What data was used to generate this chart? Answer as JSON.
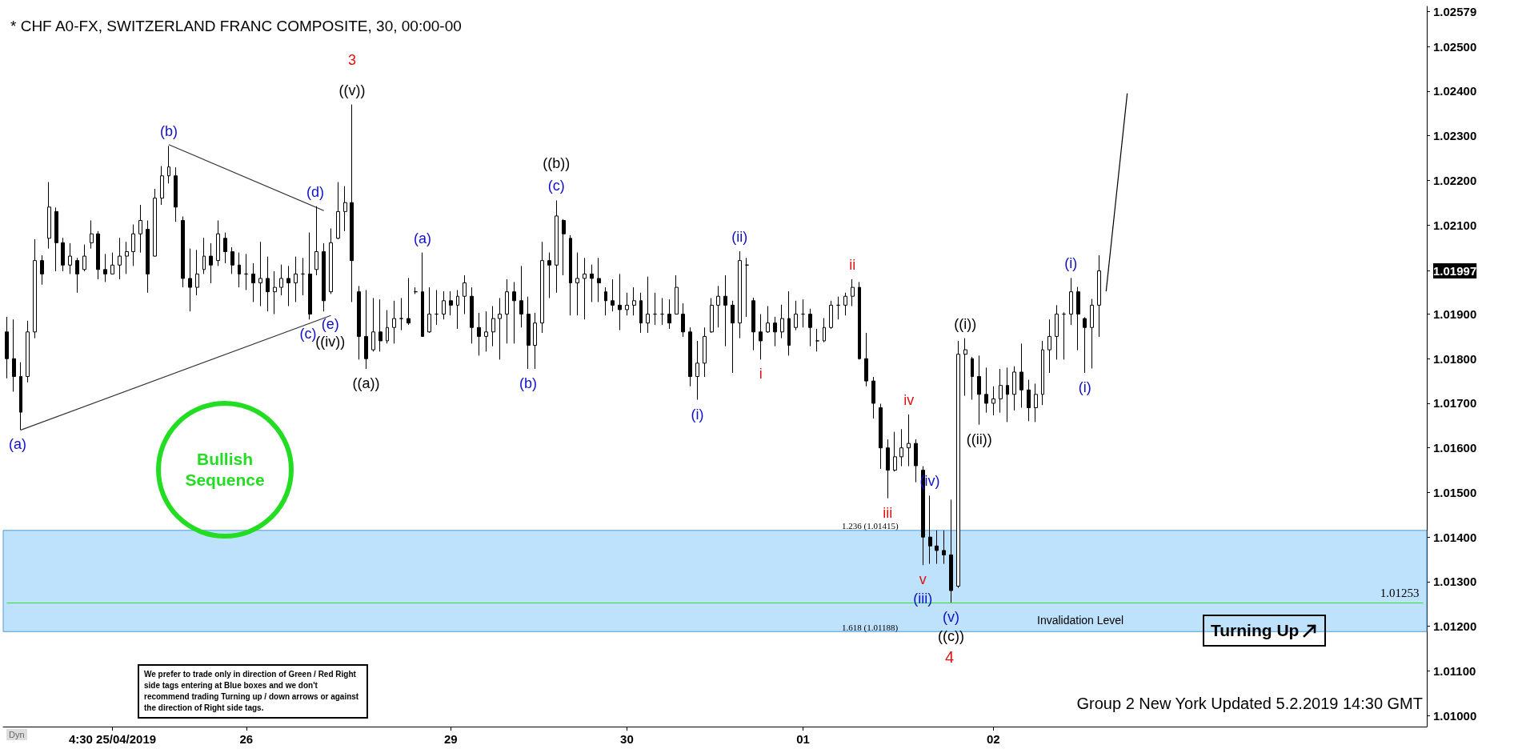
{
  "chart_data": {
    "type": "candlestick",
    "title": "* CHF A0-FX, SWITZERLAND FRANC COMPOSITE, 30, 00:00-00",
    "color": "#000000",
    "categories": [
      null,
      null,
      null,
      null,
      null,
      null,
      null,
      null,
      null,
      null,
      null,
      null,
      null,
      null,
      null,
      "4:30 25/04/2019",
      null,
      null,
      null,
      null,
      null,
      null,
      null,
      null,
      null,
      null,
      null,
      null,
      null,
      null,
      null,
      null,
      null,
      null,
      "26",
      null,
      null,
      null,
      null,
      null,
      null,
      null,
      null,
      null,
      null,
      null,
      null,
      null,
      null,
      null,
      null,
      null,
      null,
      null,
      null,
      null,
      null,
      null,
      null,
      null,
      null,
      null,
      null,
      "29",
      null,
      null,
      null,
      null,
      null,
      null,
      null,
      null,
      null,
      null,
      null,
      null,
      null,
      null,
      null,
      null,
      null,
      null,
      null,
      null,
      null,
      null,
      null,
      null,
      "30",
      null,
      null,
      null,
      null,
      null,
      null,
      null,
      null,
      null,
      null,
      null,
      null,
      null,
      null,
      null,
      null,
      null,
      null,
      null,
      null,
      null,
      null,
      null,
      null,
      "01",
      null,
      null,
      null,
      null,
      null,
      null,
      null,
      null,
      null,
      null,
      null,
      null,
      null,
      null,
      null,
      null,
      null,
      null,
      null,
      null,
      null,
      null,
      null,
      null,
      null,
      null,
      "02",
      null,
      null,
      null,
      null,
      null,
      null,
      null,
      null,
      null,
      null,
      null,
      null,
      null,
      null,
      null,
      null,
      null,
      null,
      null,
      null,
      null,
      null,
      null,
      null,
      null,
      null,
      null,
      null,
      null,
      null,
      null,
      null,
      null,
      null,
      null,
      null,
      null,
      null,
      null,
      null,
      null,
      null,
      null,
      null,
      null,
      null,
      null,
      null,
      null,
      null,
      null,
      null,
      null,
      null,
      null,
      null,
      null,
      null,
      null,
      null,
      null
    ],
    "ohlc": [
      [
        1.0186,
        1.01894,
        1.01756,
        1.018
      ],
      [
        1.018,
        1.01888,
        1.01726,
        1.0176
      ],
      [
        1.0176,
        1.01792,
        1.0164,
        1.0168
      ],
      [
        1.0176,
        1.01885,
        1.01747,
        1.0186
      ],
      [
        1.0186,
        1.02068,
        1.01846,
        1.0202
      ],
      [
        1.0202,
        1.02032,
        1.01966,
        1.0199
      ],
      [
        1.0207,
        1.02196,
        1.02047,
        1.0214
      ],
      [
        1.0213,
        1.02139,
        1.01996,
        1.0206
      ],
      [
        1.0206,
        1.02071,
        1.01996,
        1.0201
      ],
      [
        1.0201,
        1.02059,
        1.0199,
        1.0203
      ],
      [
        1.0202,
        1.02026,
        1.01948,
        1.0199
      ],
      [
        1.02,
        1.02056,
        1.01996,
        1.0203
      ],
      [
        1.0206,
        1.0211,
        1.02047,
        1.0208
      ],
      [
        1.0208,
        1.02086,
        1.01978,
        1.02
      ],
      [
        1.02,
        1.02035,
        1.01972,
        1.0199
      ],
      [
        1.0199,
        1.02038,
        1.0199,
        1.0201
      ],
      [
        1.0201,
        1.02071,
        1.01978,
        1.0203
      ],
      [
        1.0203,
        1.02062,
        1.0199,
        1.0204
      ],
      [
        1.0204,
        1.02101,
        1.02008,
        1.0208
      ],
      [
        1.0208,
        1.02145,
        1.02038,
        1.0211
      ],
      [
        1.0209,
        1.0211,
        1.01948,
        1.0199
      ],
      [
        1.0203,
        1.02181,
        1.02029,
        1.0216
      ],
      [
        1.0216,
        1.02232,
        1.02145,
        1.0221
      ],
      [
        1.0221,
        1.02277,
        1.02193,
        1.0223
      ],
      [
        1.0221,
        1.02229,
        1.02107,
        1.0214
      ],
      [
        1.0211,
        1.02119,
        1.0196,
        1.0198
      ],
      [
        1.0198,
        1.02047,
        1.01906,
        1.0196
      ],
      [
        1.0196,
        1.02044,
        1.01942,
        1.0199
      ],
      [
        1.02,
        1.02071,
        1.0199,
        1.0203
      ],
      [
        1.0203,
        1.02059,
        1.01969,
        1.0201
      ],
      [
        1.0202,
        1.0211,
        1.02008,
        1.0208
      ],
      [
        1.0207,
        1.02083,
        1.02014,
        1.0204
      ],
      [
        1.0204,
        1.0205,
        1.0199,
        1.0201
      ],
      [
        1.0201,
        1.02038,
        1.0196,
        1.0199
      ],
      [
        1.0199,
        1.02035,
        1.01954,
        1.0199
      ],
      [
        1.0199,
        1.02014,
        1.01927,
        1.0197
      ],
      [
        1.0197,
        1.02062,
        1.01918,
        1.0198
      ],
      [
        1.0198,
        1.02029,
        1.01906,
        1.0195
      ],
      [
        1.0195,
        1.01996,
        1.019,
        1.0196
      ],
      [
        1.0196,
        1.02011,
        1.01942,
        1.0198
      ],
      [
        1.0198,
        1.02008,
        1.01918,
        1.0197
      ],
      [
        1.0197,
        1.02029,
        1.01927,
        1.0199
      ],
      [
        1.0199,
        1.02026,
        1.01942,
        1.0199
      ],
      [
        1.0199,
        1.02083,
        1.01888,
        1.019
      ],
      [
        1.02,
        1.02142,
        1.01987,
        1.0204
      ],
      [
        1.0204,
        1.02059,
        1.01906,
        1.0193
      ],
      [
        1.0195,
        1.02092,
        1.01945,
        1.0206
      ],
      [
        1.0207,
        1.02196,
        1.02068,
        1.0213
      ],
      [
        1.0213,
        1.02187,
        1.02086,
        1.0215
      ],
      [
        1.0215,
        1.0237,
        1.01927,
        1.0202
      ],
      [
        1.0195,
        1.01963,
        1.01798,
        1.0185
      ],
      [
        1.0185,
        1.01954,
        1.01777,
        1.018
      ],
      [
        1.0182,
        1.01936,
        1.01816,
        1.0186
      ],
      [
        1.0186,
        1.01933,
        1.01816,
        1.0184
      ],
      [
        1.0184,
        1.01909,
        1.01834,
        1.0187
      ],
      [
        1.0187,
        1.0193,
        1.01834,
        1.0189
      ],
      [
        1.0189,
        1.01936,
        1.01864,
        1.0189
      ],
      [
        1.0189,
        1.01981,
        1.01876,
        1.0188
      ],
      [
        1.0195,
        1.0196,
        1.01945,
        1.0195
      ],
      [
        1.0195,
        1.02038,
        1.01849,
        1.0185
      ],
      [
        1.0186,
        1.0196,
        1.01858,
        1.019
      ],
      [
        1.019,
        1.01954,
        1.01876,
        1.019
      ],
      [
        1.019,
        1.01951,
        1.01888,
        1.0193
      ],
      [
        1.0193,
        1.01951,
        1.01897,
        1.0192
      ],
      [
        1.0192,
        1.01954,
        1.01867,
        1.0194
      ],
      [
        1.0194,
        1.01987,
        1.019,
        1.0197
      ],
      [
        1.0194,
        1.0196,
        1.01834,
        1.0187
      ],
      [
        1.0187,
        1.01903,
        1.01807,
        1.0185
      ],
      [
        1.0185,
        1.01906,
        1.01816,
        1.0186
      ],
      [
        1.0186,
        1.01918,
        1.01828,
        1.0189
      ],
      [
        1.0189,
        1.01936,
        1.01798,
        1.019
      ],
      [
        1.019,
        1.01978,
        1.01834,
        1.0195
      ],
      [
        1.0195,
        1.01972,
        1.01834,
        1.0193
      ],
      [
        1.0193,
        1.02008,
        1.0187,
        1.019
      ],
      [
        1.019,
        1.01939,
        1.01777,
        1.0183
      ],
      [
        1.0183,
        1.01903,
        1.01777,
        1.0188
      ],
      [
        1.0188,
        1.02062,
        1.01858,
        1.0202
      ],
      [
        1.0202,
        1.02038,
        1.01936,
        1.0201
      ],
      [
        1.0201,
        1.02155,
        1.01948,
        1.0212
      ],
      [
        1.0211,
        1.02113,
        1.01987,
        1.0208
      ],
      [
        1.0207,
        1.02077,
        1.01897,
        1.0197
      ],
      [
        1.0197,
        1.02038,
        1.01897,
        1.0198
      ],
      [
        1.0198,
        1.02026,
        1.01888,
        1.0199
      ],
      [
        1.0199,
        1.02011,
        1.01927,
        1.0198
      ],
      [
        1.0198,
        1.02026,
        1.01927,
        1.0197
      ],
      [
        1.0195,
        1.0196,
        1.01897,
        1.0193
      ],
      [
        1.0193,
        1.01978,
        1.01906,
        1.0192
      ],
      [
        1.0192,
        1.0199,
        1.01864,
        1.0191
      ],
      [
        1.0191,
        1.01948,
        1.01897,
        1.0192
      ],
      [
        1.0192,
        1.0196,
        1.01897,
        1.0193
      ],
      [
        1.0193,
        1.01948,
        1.01858,
        1.0188
      ],
      [
        1.0188,
        1.01984,
        1.01858,
        1.019
      ],
      [
        1.019,
        1.01948,
        1.01876,
        1.019
      ],
      [
        1.019,
        1.01936,
        1.01876,
        1.019
      ],
      [
        1.019,
        1.01933,
        1.01867,
        1.0188
      ],
      [
        1.019,
        1.01987,
        1.019,
        1.0196
      ],
      [
        1.019,
        1.01924,
        1.01849,
        1.0186
      ],
      [
        1.0186,
        1.0187,
        1.01738,
        1.0176
      ],
      [
        1.0176,
        1.0184,
        1.01708,
        1.0179
      ],
      [
        1.0179,
        1.0187,
        1.01759,
        1.0185
      ],
      [
        1.0186,
        1.01936,
        1.01858,
        1.0192
      ],
      [
        1.0192,
        1.01963,
        1.0187,
        1.0194
      ],
      [
        1.0194,
        1.01987,
        1.01828,
        1.0192
      ],
      [
        1.0192,
        1.0193,
        1.01768,
        1.0188
      ],
      [
        1.0188,
        1.02041,
        1.01846,
        1.0202
      ],
      [
        1.0201,
        1.02026,
        1.01894,
        1.0201
      ],
      [
        1.0193,
        1.01937,
        1.01819,
        1.0186
      ],
      [
        1.0186,
        1.019,
        1.01798,
        1.0184
      ],
      [
        1.0186,
        1.01918,
        1.01858,
        1.0188
      ],
      [
        1.0188,
        1.01894,
        1.01828,
        1.0186
      ],
      [
        1.0186,
        1.01921,
        1.01846,
        1.0189
      ],
      [
        1.0189,
        1.01951,
        1.01807,
        1.0183
      ],
      [
        1.0187,
        1.0193,
        1.01864,
        1.019
      ],
      [
        1.019,
        1.01933,
        1.0187,
        1.019
      ],
      [
        1.019,
        1.01912,
        1.01828,
        1.0187
      ],
      [
        1.0184,
        1.01867,
        1.01816,
        1.0184
      ],
      [
        1.0184,
        1.01891,
        1.01837,
        1.0187
      ],
      [
        1.0187,
        1.0193,
        1.01867,
        1.0192
      ],
      [
        1.0192,
        1.01939,
        1.01888,
        1.0192
      ],
      [
        1.0192,
        1.01948,
        1.01897,
        1.0194
      ],
      [
        1.0194,
        1.01978,
        1.01918,
        1.0196
      ],
      [
        1.0196,
        1.01972,
        1.01798,
        1.018
      ],
      [
        1.018,
        1.01858,
        1.01738,
        1.0175
      ],
      [
        1.0175,
        1.01759,
        1.01666,
        1.017
      ],
      [
        1.0169,
        1.01699,
        1.01553,
        1.016
      ],
      [
        1.016,
        1.01619,
        1.01487,
        1.0155
      ],
      [
        1.0155,
        1.01636,
        1.01547,
        1.0158
      ],
      [
        1.0158,
        1.01642,
        1.01559,
        1.016
      ],
      [
        1.016,
        1.01675,
        1.01559,
        1.0161
      ],
      [
        1.0161,
        1.01619,
        1.01523,
        1.0156
      ],
      [
        1.0155,
        1.01559,
        1.01337,
        1.014
      ],
      [
        1.014,
        1.01493,
        1.0134,
        1.0138
      ],
      [
        1.0138,
        1.01415,
        1.0134,
        1.0137
      ],
      [
        1.0137,
        1.01415,
        1.0134,
        1.0136
      ],
      [
        1.0136,
        1.01484,
        1.01253,
        1.0128
      ],
      [
        1.0129,
        1.0184,
        1.01286,
        1.0181
      ],
      [
        1.0181,
        1.01846,
        1.01717,
        1.0182
      ],
      [
        1.018,
        1.01804,
        1.01708,
        1.0176
      ],
      [
        1.0176,
        1.01807,
        1.01652,
        1.0172
      ],
      [
        1.0172,
        1.0178,
        1.01679,
        1.017
      ],
      [
        1.017,
        1.01738,
        1.01673,
        1.0171
      ],
      [
        1.0171,
        1.01777,
        1.01679,
        1.0174
      ],
      [
        1.0174,
        1.0178,
        1.01658,
        1.0172
      ],
      [
        1.0172,
        1.01783,
        1.01684,
        1.0177
      ],
      [
        1.0177,
        1.01834,
        1.0169,
        1.0173
      ],
      [
        1.0173,
        1.01753,
        1.0166,
        1.0169
      ],
      [
        1.0169,
        1.01744,
        1.01658,
        1.0172
      ],
      [
        1.0172,
        1.0184,
        1.01696,
        1.0182
      ],
      [
        1.0182,
        1.01888,
        1.01768,
        1.0185
      ],
      [
        1.0185,
        1.0192,
        1.01798,
        1.019
      ],
      [
        1.019,
        1.01904,
        1.01798,
        1.019
      ],
      [
        1.019,
        1.01981,
        1.01876,
        1.0195
      ],
      [
        1.0195,
        1.01961,
        1.01819,
        1.019
      ],
      [
        1.0189,
        1.01893,
        1.01768,
        1.0187
      ],
      [
        1.0187,
        1.01934,
        1.01778,
        1.0192
      ],
      [
        1.0192,
        1.02032,
        1.01849,
        1.01997
      ],
      null,
      null,
      null,
      null,
      null,
      null,
      null,
      null,
      null,
      null,
      null,
      null,
      null,
      null,
      null,
      null,
      null,
      null,
      null,
      null,
      null,
      null,
      null,
      null,
      null,
      null,
      null,
      null,
      null,
      null,
      null,
      null,
      null,
      null,
      null,
      null,
      null,
      null,
      null,
      null,
      null,
      null,
      null,
      null,
      null,
      null
    ],
    "series": [
      {
        "type": "line",
        "color": "#333333",
        "values": [
          null,
          null,
          null,
          null,
          null,
          null,
          null,
          null,
          null,
          null,
          null,
          null,
          null,
          null,
          null,
          null,
          null,
          null,
          null,
          null,
          null,
          null,
          null,
          1.0228,
          null,
          null,
          null,
          null,
          null,
          null,
          null,
          null,
          null,
          null,
          null,
          null,
          null,
          null,
          null,
          null,
          null,
          null,
          null,
          null,
          null,
          1.02132,
          null,
          null,
          null,
          null,
          null,
          null,
          null,
          null,
          null,
          null,
          null,
          null,
          null,
          null,
          null,
          null,
          null,
          null,
          null,
          null,
          null,
          null,
          null,
          null,
          null,
          null,
          null,
          null,
          null,
          null,
          null,
          null,
          null,
          null,
          null,
          null,
          null,
          null,
          null,
          null,
          null,
          null,
          null,
          null,
          null,
          null,
          null,
          null,
          null,
          null,
          null,
          null,
          null,
          null,
          null,
          null,
          null,
          null,
          null,
          null,
          null,
          null,
          null,
          null,
          null,
          null,
          null,
          null,
          null,
          null,
          null,
          null,
          null,
          null,
          null,
          null,
          null,
          null,
          null,
          null,
          null,
          null,
          null,
          null,
          null,
          null,
          null,
          null,
          null,
          null,
          null,
          null,
          null,
          null,
          null,
          null,
          null,
          null,
          null,
          null,
          null,
          null,
          null,
          null,
          null,
          null,
          null,
          null,
          null,
          null,
          null,
          null,
          null,
          null,
          null,
          null,
          null,
          null,
          null,
          null,
          null,
          null,
          null,
          null,
          null,
          null,
          null,
          null,
          null,
          null,
          null,
          null,
          null,
          null,
          null,
          null,
          null,
          null,
          null,
          null,
          null,
          null,
          null,
          null,
          null,
          null,
          null,
          null,
          null,
          null,
          null,
          null,
          null,
          null,
          null,
          null
        ]
      },
      {
        "type": "line",
        "color": "#333333",
        "values": [
          null,
          null,
          1.0164,
          null,
          null,
          null,
          null,
          null,
          null,
          null,
          null,
          null,
          null,
          null,
          null,
          null,
          null,
          null,
          null,
          null,
          null,
          null,
          null,
          null,
          null,
          null,
          null,
          null,
          null,
          null,
          null,
          null,
          null,
          null,
          null,
          null,
          null,
          null,
          null,
          null,
          null,
          null,
          null,
          null,
          null,
          null,
          1.01897,
          null,
          null,
          null,
          null,
          null,
          null,
          null,
          null,
          null,
          null,
          null,
          null,
          null,
          null,
          null,
          null,
          null,
          null,
          null,
          null,
          null,
          null,
          null,
          null,
          null,
          null,
          null,
          null,
          null,
          null,
          null,
          null,
          null,
          null,
          null,
          null,
          null,
          null,
          null,
          null,
          null,
          null,
          null,
          null,
          null,
          null,
          null,
          null,
          null,
          null,
          null,
          null,
          null,
          null,
          null,
          null,
          null,
          null,
          null,
          null,
          null,
          null,
          null,
          null,
          null,
          null,
          null,
          null,
          null,
          null,
          null,
          null,
          null,
          null,
          null,
          null,
          null,
          null,
          null,
          null,
          null,
          null,
          null,
          null,
          null,
          null,
          null,
          null,
          null,
          null,
          null,
          null,
          null,
          null,
          null,
          null,
          null,
          null,
          null,
          null,
          null,
          null,
          null,
          null,
          null,
          null,
          null,
          null,
          null,
          null,
          null,
          null,
          null,
          null,
          null,
          null,
          null,
          null,
          null,
          null,
          null,
          null,
          null,
          null,
          null,
          null,
          null,
          null,
          null,
          null,
          null,
          null,
          null,
          null,
          null,
          null,
          null,
          null,
          null,
          null,
          null,
          null,
          null,
          null,
          null,
          null,
          null,
          null,
          null,
          null,
          null,
          null,
          null,
          null,
          null
        ]
      },
      {
        "type": "line",
        "color": "#000000",
        "values": [
          null,
          null,
          null,
          null,
          null,
          null,
          null,
          null,
          null,
          null,
          null,
          null,
          null,
          null,
          null,
          null,
          null,
          null,
          null,
          null,
          null,
          null,
          null,
          null,
          null,
          null,
          null,
          null,
          null,
          null,
          null,
          null,
          null,
          null,
          null,
          null,
          null,
          null,
          null,
          null,
          null,
          null,
          null,
          null,
          null,
          null,
          null,
          null,
          null,
          null,
          null,
          null,
          null,
          null,
          null,
          null,
          null,
          null,
          null,
          null,
          null,
          null,
          null,
          null,
          null,
          null,
          null,
          null,
          null,
          null,
          null,
          null,
          null,
          null,
          null,
          null,
          null,
          null,
          null,
          null,
          null,
          null,
          null,
          null,
          null,
          null,
          null,
          null,
          null,
          null,
          null,
          null,
          null,
          null,
          null,
          null,
          null,
          null,
          null,
          null,
          null,
          null,
          null,
          null,
          null,
          null,
          null,
          null,
          null,
          null,
          null,
          null,
          null,
          null,
          null,
          null,
          null,
          null,
          null,
          null,
          null,
          null,
          null,
          null,
          null,
          null,
          null,
          null,
          null,
          null,
          null,
          null,
          null,
          null,
          null,
          null,
          null,
          null,
          null,
          null,
          null,
          null,
          null,
          null,
          null,
          null,
          null,
          null,
          null,
          null,
          null,
          null,
          null,
          null,
          null,
          null,
          1.01951,
          null,
          null,
          1.02395,
          null,
          null,
          null,
          null,
          null,
          null,
          null,
          null,
          null,
          null,
          null,
          null,
          null,
          null,
          null,
          null,
          null,
          null,
          null,
          null,
          null,
          null,
          null,
          null,
          null,
          null,
          null,
          null,
          null,
          null,
          null,
          null,
          null,
          null,
          null,
          null,
          null,
          null,
          null,
          null,
          null,
          null
        ]
      }
    ],
    "ylim": [
      1.00975,
      1.0259
    ],
    "yticks": [
      {
        "value": 1.01,
        "label": "1.01000"
      },
      {
        "value": 1.011,
        "label": "1.01100"
      },
      {
        "value": 1.012,
        "label": "1.01200"
      },
      {
        "value": 1.013,
        "label": "1.01300"
      },
      {
        "value": 1.014,
        "label": "1.01400"
      },
      {
        "value": 1.015,
        "label": "1.01500"
      },
      {
        "value": 1.016,
        "label": "1.01600"
      },
      {
        "value": 1.017,
        "label": "1.01700"
      },
      {
        "value": 1.018,
        "label": "1.01800"
      },
      {
        "value": 1.019,
        "label": "1.01900"
      },
      {
        "value": 1.01997,
        "label": "1.01997"
      },
      {
        "value": 1.021,
        "label": "1.02100"
      },
      {
        "value": 1.022,
        "label": "1.02200"
      },
      {
        "value": 1.023,
        "label": "1.02300"
      },
      {
        "value": 1.024,
        "label": "1.02400"
      },
      {
        "value": 1.025,
        "label": "1.02500"
      },
      {
        "value": 1.02579,
        "label": "1.02579"
      }
    ],
    "ref_lines": [
      {
        "axis": "y",
        "value": 1.01253,
        "label": "1.01253",
        "color": "#33dd33"
      }
    ],
    "bands": [
      {
        "axis": "y",
        "from": 1.01188,
        "to": 1.01415,
        "color": "#b3dcfb"
      }
    ],
    "annotations": [
      "Bullish Sequence",
      "We prefer to trade only in direction of Green / Red Right side tags entering at Blue boxes and we don't recommend trading Turning up / down arrows or against the direction of Right side tags.",
      "Turning Up",
      "Group 2 New York Updated 5.2.2019 14:30 GMT",
      "Dyn",
      "Invalidation Level",
      "1.236 (1.01415)",
      "1.618 (1.01188)",
      {
        "text": "(a)",
        "y": 1.0164
      },
      {
        "text": "(b)",
        "y": 1.02277
      },
      {
        "text": "(c)",
        "y": 1.01888
      },
      {
        "text": "(d)",
        "y": 1.02142
      },
      {
        "text": "(e)",
        "y": 1.01906
      },
      {
        "text": "((iv))",
        "y": 1.01906
      },
      {
        "text": "3",
        "y": 1.0237
      },
      {
        "text": "((v))",
        "y": 1.0237
      },
      {
        "text": "((a))",
        "y": 1.01777
      },
      {
        "text": "(a)",
        "y": 1.02038
      },
      {
        "text": "(b)",
        "y": 1.01777
      },
      {
        "text": "((b))",
        "y": 1.02155
      },
      {
        "text": "(c)",
        "y": 1.02155
      },
      {
        "text": "(i)",
        "y": 1.01708
      },
      {
        "text": "(ii)",
        "y": 1.02041
      },
      {
        "text": "i",
        "y": 1.01798
      },
      {
        "text": "ii",
        "y": 1.01978
      },
      {
        "text": "iii",
        "y": 1.01487
      },
      {
        "text": "iv",
        "y": 1.01675
      },
      {
        "text": "v",
        "y": 1.01337
      },
      {
        "text": "(iii)",
        "y": 1.01337
      },
      {
        "text": "(iv)",
        "y": 1.01493
      },
      {
        "text": "(v)",
        "y": 1.01253
      },
      {
        "text": "((c))",
        "y": 1.01253
      },
      "4",
      {
        "text": "((i))",
        "y": 1.01846
      },
      {
        "text": "((ii))",
        "y": 1.01652
      },
      {
        "text": "(i)",
        "y": 1.01981
      },
      {
        "text": "(i)",
        "y": 1.01768
      }
    ]
  }
}
